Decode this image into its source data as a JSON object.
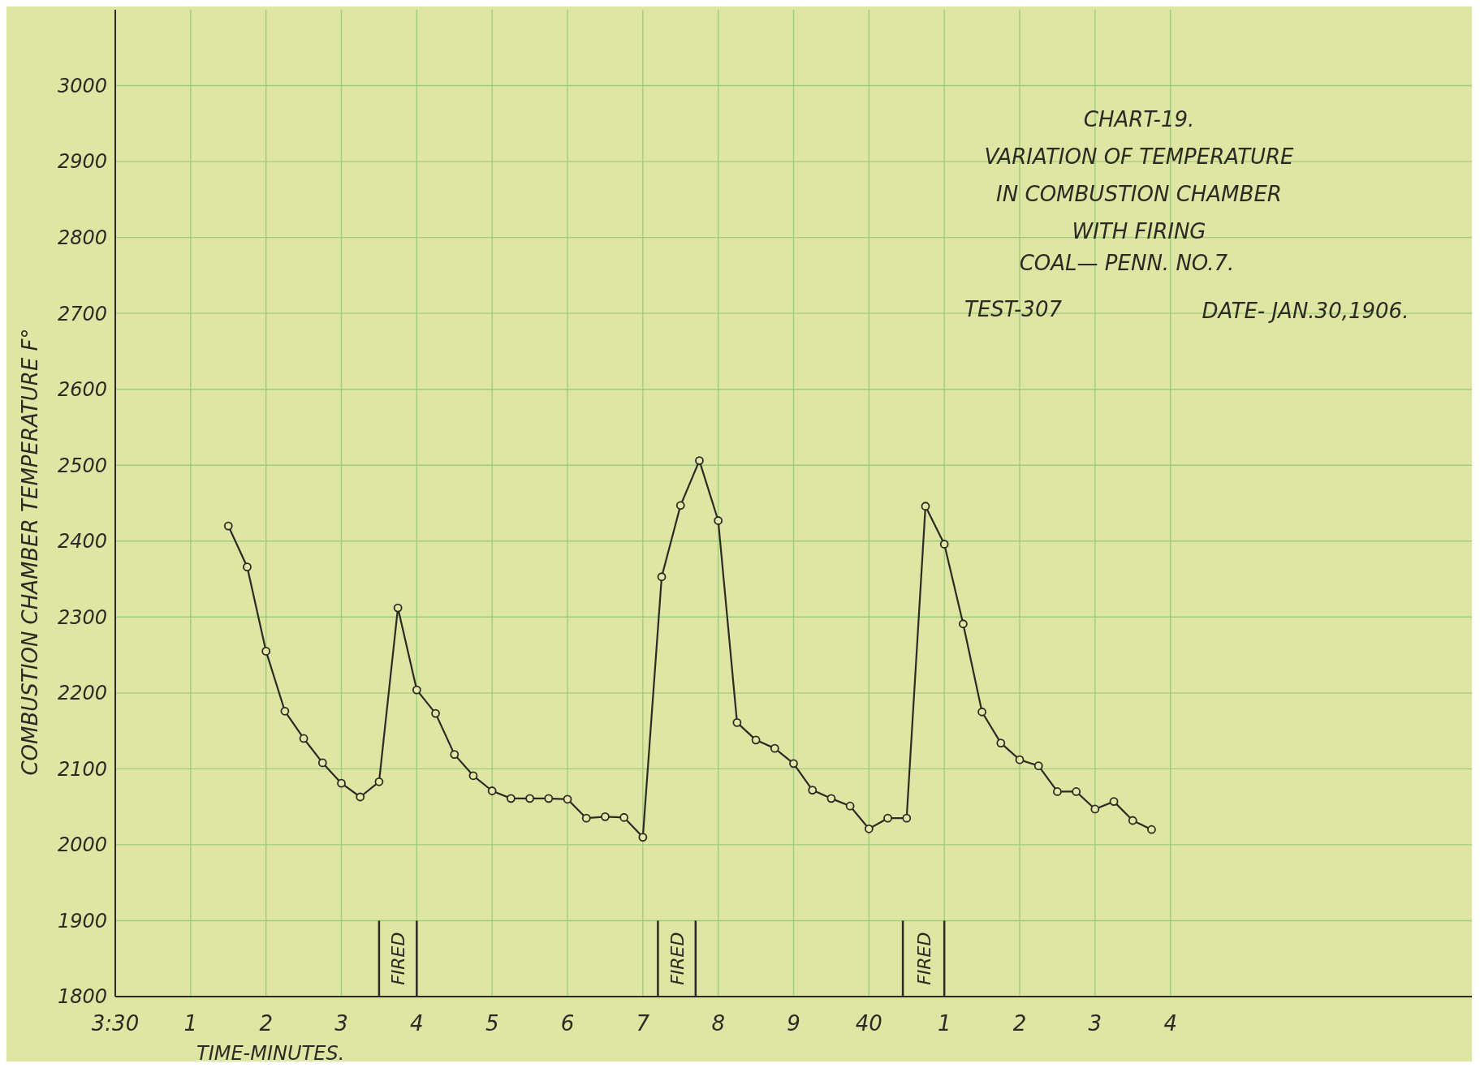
{
  "chart_data": {
    "type": "line",
    "title": "CHART-19.",
    "subtitle": "VARIATION OF TEMPERATURE\nIN COMBUSTION CHAMBER\nWITH FIRING",
    "xlabel": "TIME-MINUTES.",
    "ylabel": "COMBUSTION CHAMBER TEMPERATURE F°",
    "annotations": [
      "COAL— PENN. NO.7.",
      "TEST-307",
      "DATE- JAN.30,1906.",
      "FIRED",
      "FIRED",
      "FIRED"
    ],
    "categories": [
      "3:30",
      null,
      null,
      null,
      "1",
      null,
      null,
      null,
      "2",
      null,
      null,
      null,
      "3",
      null,
      null,
      null,
      "4",
      null,
      null,
      null,
      "5",
      null,
      null,
      null,
      "6",
      null,
      null,
      null,
      "7",
      null,
      null,
      null,
      "8",
      null,
      null,
      null,
      "9",
      null,
      null,
      null,
      "40",
      null,
      null,
      null,
      "1",
      null,
      null,
      null,
      "2",
      null,
      null,
      null,
      "3",
      null,
      null,
      null,
      "4",
      null,
      null,
      null,
      null,
      null,
      null,
      null,
      null,
      null,
      null,
      null,
      null,
      null,
      null,
      null,
      null
    ],
    "series": [
      {
        "color": "#2b2b24",
        "values": [
          null,
          null,
          null,
          null,
          null,
          null,
          2420,
          2366,
          2255,
          2176,
          2140,
          2108,
          2081,
          2063,
          2083,
          2312,
          2204,
          2173,
          2119,
          2091,
          2071,
          2061,
          2061,
          2061,
          2060,
          2035,
          2037,
          2036,
          2010,
          2353,
          2447,
          2506,
          2427,
          2161,
          2138,
          2127,
          2107,
          2072,
          2061,
          2051,
          2021,
          2035,
          2035,
          2446,
          2396,
          2291,
          2175,
          2134,
          2112,
          2104,
          2070,
          2070,
          2047,
          2057,
          2032,
          2020,
          null,
          null,
          null,
          null,
          null,
          null,
          null,
          null,
          null,
          null,
          null,
          null,
          null,
          null,
          null,
          null,
          null
        ]
      }
    ],
    "ylim": [
      1800,
      3100
    ],
    "yticks": [
      1800,
      1900,
      2000,
      2100,
      2200,
      2300,
      2400,
      2500,
      2600,
      2700,
      2800,
      2900,
      3000
    ],
    "grid": true,
    "marker": "circle",
    "line_style": "solid"
  }
}
